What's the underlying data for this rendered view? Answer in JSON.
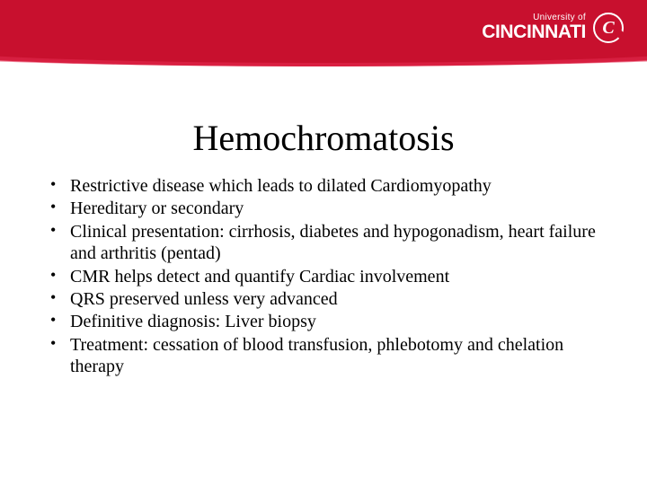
{
  "header": {
    "logo_small": "University of",
    "logo_big": "CINCINNATI",
    "logo_mark": "C",
    "brand_color": "#c8102e"
  },
  "title": "Hemochromatosis",
  "bullets": [
    "Restrictive disease which leads to dilated Cardiomyopathy",
    "Hereditary or secondary",
    "Clinical presentation: cirrhosis, diabetes and hypogonadism, heart failure and arthritis  (pentad)",
    "CMR helps detect and quantify Cardiac involvement",
    " QRS preserved unless very advanced",
    "Definitive diagnosis: Liver biopsy",
    "Treatment: cessation of blood transfusion, phlebotomy and chelation therapy"
  ]
}
